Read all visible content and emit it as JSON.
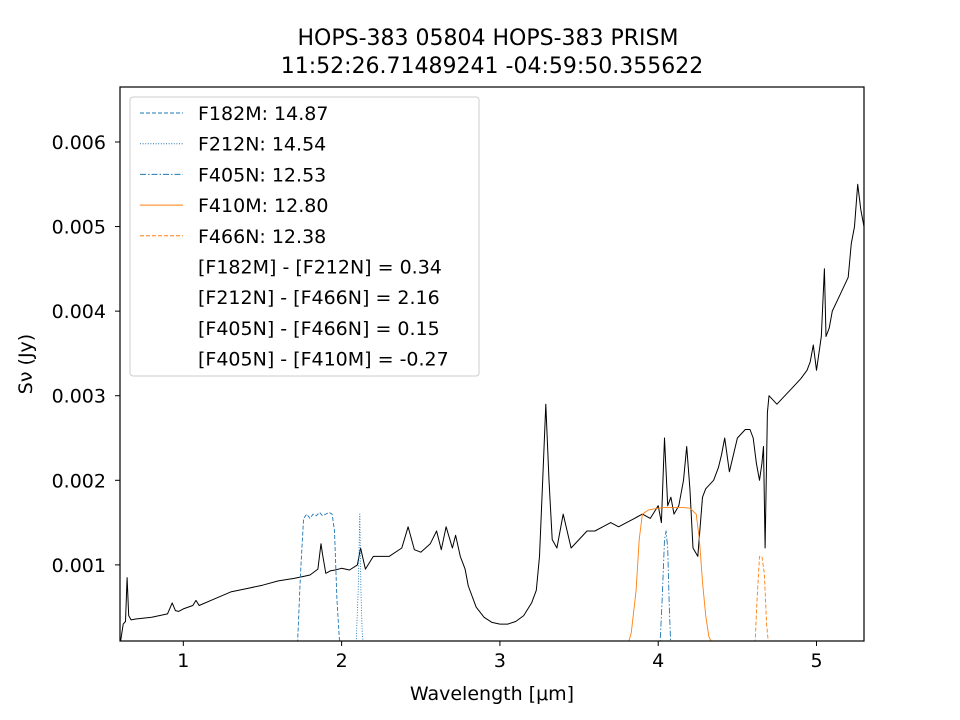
{
  "chart_data": {
    "type": "line",
    "title_line1": "HOPS-383 05804 HOPS-383 PRISM",
    "title_line2": "11:52:26.71489241 -04:59:50.355622",
    "xlabel": "Wavelength [μm]",
    "ylabel": "Sν (Jy)",
    "xlim": [
      0.6,
      5.3
    ],
    "ylim": [
      0.0001,
      0.00665
    ],
    "xticks": [
      {
        "value": 1,
        "label": "1"
      },
      {
        "value": 2,
        "label": "2"
      },
      {
        "value": 3,
        "label": "3"
      },
      {
        "value": 4,
        "label": "4"
      },
      {
        "value": 5,
        "label": "5"
      }
    ],
    "yticks": [
      {
        "value": 0.001,
        "label": "0.001"
      },
      {
        "value": 0.002,
        "label": "0.002"
      },
      {
        "value": 0.003,
        "label": "0.003"
      },
      {
        "value": 0.004,
        "label": "0.004"
      },
      {
        "value": 0.005,
        "label": "0.005"
      },
      {
        "value": 0.006,
        "label": "0.006"
      }
    ],
    "legend_position": "upper-left",
    "legend": [
      {
        "label": "F182M: 14.87",
        "color": "#1f77b4",
        "dash": "4,2"
      },
      {
        "label": "F212N: 14.54",
        "color": "#1f77b4",
        "dash": "1,1.6"
      },
      {
        "label": "F405N: 12.53",
        "color": "#1f77b4",
        "dash": "6,2,1.5,2"
      },
      {
        "label": "F410M: 12.80",
        "color": "#ff7f0e",
        "dash": ""
      },
      {
        "label": "F466N: 12.38",
        "color": "#ff7f0e",
        "dash": "4,2"
      },
      {
        "label": "[F182M] - [F212N] = 0.34",
        "color": "",
        "dash": ""
      },
      {
        "label": "[F212N] - [F466N] = 2.16",
        "color": "",
        "dash": ""
      },
      {
        "label": "[F405N] - [F466N] = 0.15",
        "color": "",
        "dash": ""
      },
      {
        "label": "[F405N] - [F410M] = -0.27",
        "color": "",
        "dash": ""
      }
    ],
    "series": [
      {
        "color": "#000000",
        "dash": "",
        "x": [
          0.6,
          0.62,
          0.635,
          0.645,
          0.655,
          0.67,
          0.7,
          0.8,
          0.9,
          0.93,
          0.95,
          0.97,
          1.0,
          1.06,
          1.08,
          1.1,
          1.2,
          1.3,
          1.4,
          1.5,
          1.6,
          1.7,
          1.75,
          1.8,
          1.85,
          1.87,
          1.88,
          1.9,
          1.93,
          1.96,
          2.0,
          2.05,
          2.1,
          2.12,
          2.15,
          2.2,
          2.3,
          2.38,
          2.42,
          2.46,
          2.5,
          2.56,
          2.6,
          2.63,
          2.66,
          2.7,
          2.72,
          2.75,
          2.78,
          2.8,
          2.85,
          2.9,
          2.95,
          3.0,
          3.05,
          3.1,
          3.15,
          3.2,
          3.23,
          3.25,
          3.27,
          3.29,
          3.31,
          3.33,
          3.36,
          3.4,
          3.45,
          3.5,
          3.55,
          3.6,
          3.65,
          3.7,
          3.75,
          3.8,
          3.85,
          3.9,
          3.95,
          4.0,
          4.02,
          4.04,
          4.06,
          4.08,
          4.1,
          4.13,
          4.16,
          4.18,
          4.2,
          4.22,
          4.25,
          4.28,
          4.3,
          4.35,
          4.38,
          4.4,
          4.42,
          4.45,
          4.5,
          4.55,
          4.58,
          4.6,
          4.62,
          4.64,
          4.655,
          4.665,
          4.675,
          4.69,
          4.7,
          4.75,
          4.8,
          4.85,
          4.9,
          4.94,
          4.96,
          4.98,
          5.0,
          5.03,
          5.05,
          5.06,
          5.08,
          5.1,
          5.15,
          5.2,
          5.22,
          5.24,
          5.26,
          5.28,
          5.3
        ],
        "y": [
          5e-05,
          0.0003,
          0.00033,
          0.00085,
          0.0004,
          0.00035,
          0.00036,
          0.00038,
          0.00042,
          0.00055,
          0.00046,
          0.00045,
          0.00048,
          0.00052,
          0.00058,
          0.00052,
          0.0006,
          0.00068,
          0.00072,
          0.00076,
          0.00081,
          0.00084,
          0.00086,
          0.00088,
          0.00095,
          0.00125,
          0.00112,
          0.0009,
          0.00093,
          0.00094,
          0.00096,
          0.00094,
          0.001,
          0.0012,
          0.00095,
          0.0011,
          0.0011,
          0.0012,
          0.00145,
          0.00118,
          0.00115,
          0.00125,
          0.0014,
          0.00118,
          0.00145,
          0.0012,
          0.00135,
          0.0011,
          0.00095,
          0.00075,
          0.0005,
          0.00038,
          0.00032,
          0.0003,
          0.0003,
          0.00033,
          0.0004,
          0.00055,
          0.0007,
          0.0011,
          0.002,
          0.0029,
          0.002,
          0.0013,
          0.0012,
          0.0016,
          0.0012,
          0.0013,
          0.0014,
          0.0014,
          0.00145,
          0.0015,
          0.00145,
          0.0015,
          0.00155,
          0.0016,
          0.00155,
          0.0017,
          0.0015,
          0.0025,
          0.0017,
          0.0018,
          0.0016,
          0.0017,
          0.002,
          0.0024,
          0.0019,
          0.0012,
          0.0011,
          0.0018,
          0.0019,
          0.002,
          0.00215,
          0.0023,
          0.0025,
          0.0021,
          0.0025,
          0.0026,
          0.0026,
          0.0025,
          0.0022,
          0.002,
          0.0022,
          0.0024,
          0.0012,
          0.0028,
          0.003,
          0.0029,
          0.003,
          0.0031,
          0.0032,
          0.0033,
          0.0034,
          0.0036,
          0.0033,
          0.0037,
          0.0045,
          0.0037,
          0.0038,
          0.004,
          0.0042,
          0.0044,
          0.0048,
          0.005,
          0.0055,
          0.0052,
          0.005
        ]
      },
      {
        "color": "#1f77b4",
        "dash": "4,2",
        "x": [
          1.72,
          1.74,
          1.76,
          1.78,
          1.8,
          1.82,
          1.84,
          1.86,
          1.88,
          1.9,
          1.92,
          1.94,
          1.955,
          1.97,
          1.99
        ],
        "y": [
          0.0,
          0.0009,
          0.00155,
          0.0016,
          0.00155,
          0.0016,
          0.00158,
          0.00162,
          0.00158,
          0.0016,
          0.00162,
          0.0016,
          0.0014,
          0.0006,
          0.0
        ]
      },
      {
        "color": "#1f77b4",
        "dash": "1,1.6",
        "x": [
          2.09,
          2.105,
          2.115,
          2.122,
          2.13,
          2.14
        ],
        "y": [
          0.0,
          0.0007,
          0.0016,
          0.0007,
          0.0002,
          0.0
        ]
      },
      {
        "color": "#ff7f0e",
        "dash": "",
        "x": [
          3.8,
          3.83,
          3.86,
          3.88,
          3.9,
          3.94,
          4.0,
          4.05,
          4.1,
          4.15,
          4.2,
          4.24,
          4.26,
          4.28,
          4.3,
          4.32,
          4.36
        ],
        "y": [
          0.0,
          0.0002,
          0.0007,
          0.0013,
          0.0016,
          0.00165,
          0.00167,
          0.00168,
          0.00168,
          0.00168,
          0.00167,
          0.0016,
          0.0013,
          0.0008,
          0.0004,
          0.00015,
          0.0
        ]
      },
      {
        "color": "#1f77b4",
        "dash": "6,2,1.5,2",
        "x": [
          4.01,
          4.025,
          4.04,
          4.05,
          4.06,
          4.07,
          4.08
        ],
        "y": [
          0.0,
          0.0006,
          0.0013,
          0.0014,
          0.0012,
          0.0005,
          0.0
        ]
      },
      {
        "color": "#ff7f0e",
        "dash": "4,2",
        "x": [
          4.61,
          4.625,
          4.64,
          4.655,
          4.67,
          4.685,
          4.7
        ],
        "y": [
          0.0,
          0.0006,
          0.0011,
          0.0011,
          0.0009,
          0.0003,
          0.0
        ]
      }
    ]
  }
}
